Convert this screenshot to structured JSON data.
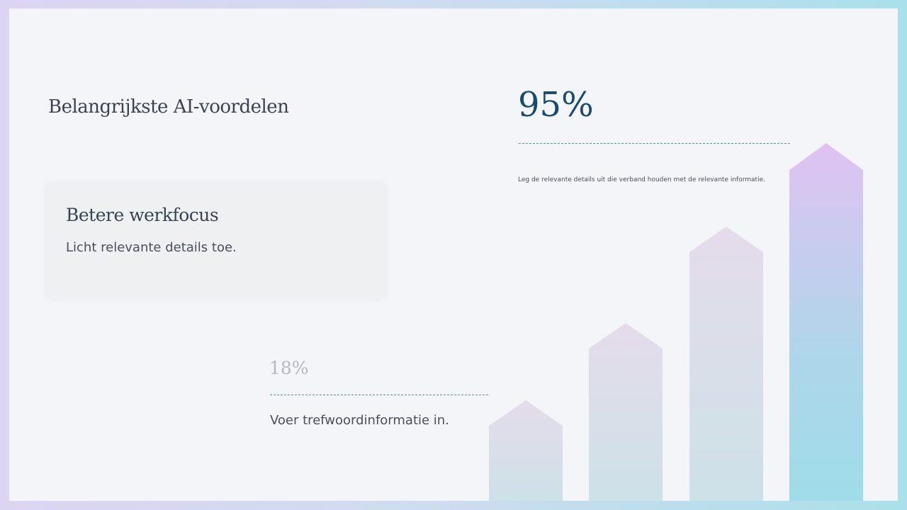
{
  "title": "Belangrijkste AI-voordelen",
  "card": {
    "title": "Betere werkfocus",
    "text": "Licht relevante details toe."
  },
  "stat_main": {
    "value": "95%",
    "description": "Leg de relevante details uit die verband houden met de relevante informatie."
  },
  "stat_secondary": {
    "value": "18%",
    "description": "Voer trefwoordinformatie in."
  },
  "colors": {
    "accent": "#164a70",
    "arrow_top": "#e0c2f2",
    "arrow_bottom": "#9fdcea"
  }
}
